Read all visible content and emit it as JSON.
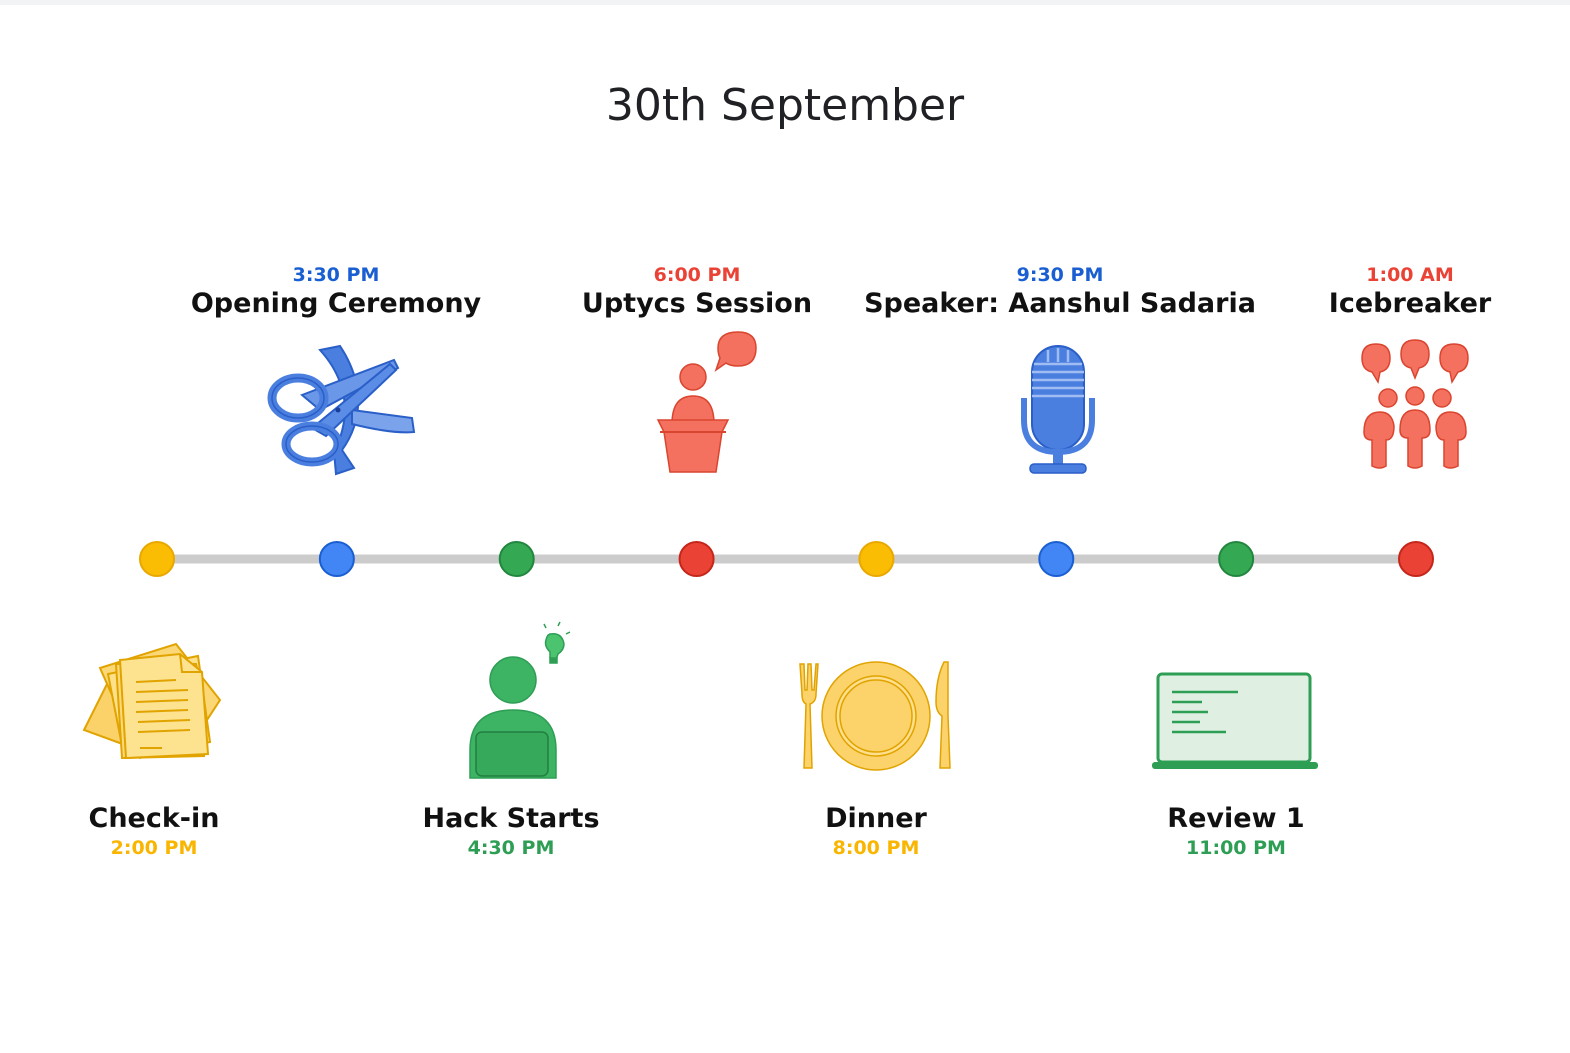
{
  "title": "30th September",
  "colors": {
    "yellow": "#fbbc04",
    "blue": "#4285f4",
    "green": "#34a853",
    "red": "#ea4335",
    "text_blue": "#1a5fd1",
    "text_red": "#ea4335",
    "text_yellow": "#f9b500",
    "text_green": "#2e9e55"
  },
  "timeline": {
    "dot_colors": [
      "yellow",
      "blue",
      "green",
      "red",
      "yellow",
      "blue",
      "green",
      "red"
    ]
  },
  "events_top": [
    {
      "time": "3:30 PM",
      "name": "Opening Ceremony",
      "icon": "scissors-ribbon-icon"
    },
    {
      "time": "6:00 PM",
      "name": "Uptycs Session",
      "icon": "speaker-podium-icon"
    },
    {
      "time": "9:30 PM",
      "name": "Speaker: Aanshul Sadaria",
      "icon": "microphone-icon"
    },
    {
      "time": "1:00 AM",
      "name": "Icebreaker",
      "icon": "group-chat-icon"
    }
  ],
  "events_bottom": [
    {
      "time": "2:00 PM",
      "name": "Check-in",
      "icon": "documents-icon"
    },
    {
      "time": "4:30 PM",
      "name": "Hack Starts",
      "icon": "person-laptop-idea-icon"
    },
    {
      "time": "8:00 PM",
      "name": "Dinner",
      "icon": "plate-cutlery-icon"
    },
    {
      "time": "11:00 PM",
      "name": "Review 1",
      "icon": "laptop-code-icon"
    }
  ]
}
